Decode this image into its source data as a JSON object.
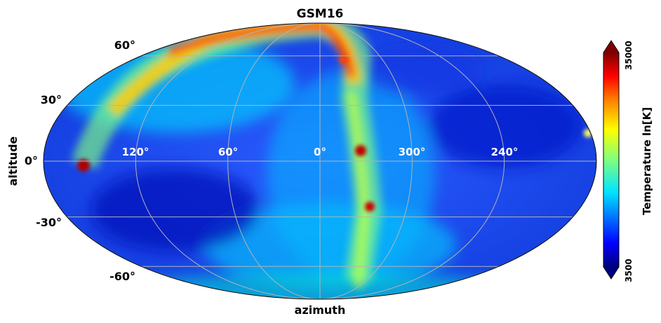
{
  "chart_data": {
    "type": "heatmap",
    "projection": "mollweide",
    "title": "GSM16",
    "xlabel": "azimuth",
    "ylabel": "altitude",
    "x_tick_labels": [
      "120°",
      "60°",
      "0°",
      "300°",
      "240°"
    ],
    "x_tick_values": [
      120,
      60,
      0,
      300,
      240
    ],
    "y_tick_labels": [
      "60°",
      "30°",
      "0°",
      "-30°",
      "-60°"
    ],
    "y_tick_values": [
      60,
      30,
      0,
      -30,
      -60
    ],
    "grid": true,
    "colorbar": {
      "label": "Temperature ln[K]",
      "min_label": "3500",
      "max_label": "35000",
      "vmin": 3500,
      "vmax": 35000,
      "colormap": "jet",
      "extend": "both",
      "orientation": "vertical",
      "placement": "right"
    },
    "bright_features": [
      {
        "name": "galactic-plane-arc",
        "level": 0.85
      },
      {
        "name": "bright-source-west",
        "level": 1.0
      },
      {
        "name": "bright-source-center",
        "level": 1.0
      },
      {
        "name": "bright-source-south",
        "level": 0.95
      }
    ]
  },
  "colors": {
    "background": "#ffffff",
    "grid": "#b3b3b3",
    "outline": "#000000",
    "tick_text_inside": "#ffffff",
    "jet_stops": [
      "#00007f",
      "#0000ff",
      "#007fff",
      "#00ffff",
      "#7fff7f",
      "#ffff00",
      "#ff7f00",
      "#ff0000",
      "#7f0000"
    ]
  }
}
